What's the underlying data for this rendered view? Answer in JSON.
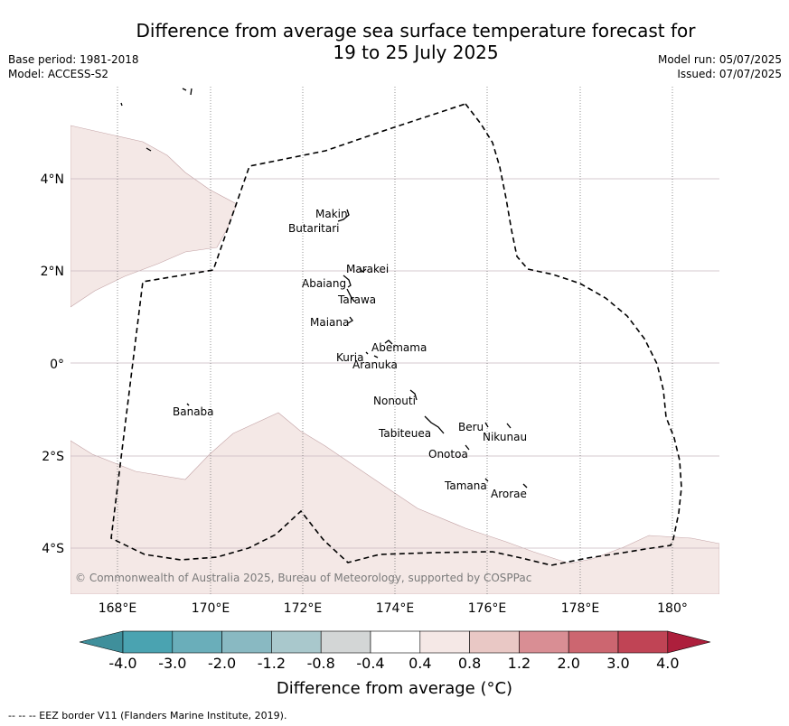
{
  "title": {
    "line1": "Difference from average sea surface temperature forecast for",
    "line2": "19 to 25 July 2025"
  },
  "meta_left": [
    "Base period: 1981-2018",
    "Model: ACCESS-S2"
  ],
  "meta_right": [
    "Model run: 05/07/2025",
    "Issued: 07/07/2025"
  ],
  "map": {
    "lat_labels": [
      "4°N",
      "2°N",
      "0°",
      "2°S",
      "4°S"
    ],
    "lon_labels": [
      "168°E",
      "170°E",
      "172°E",
      "174°E",
      "176°E",
      "178°E",
      "180°"
    ],
    "places": [
      "Makin",
      "Butaritari",
      "Marakei",
      "Abaiang",
      "Tarawa",
      "Maiana",
      "Abemama",
      "Kuria",
      "Aranuka",
      "Nonouti",
      "Banaba",
      "Beru",
      "Nikunau",
      "Tabiteuea",
      "Onotoa",
      "Tamana",
      "Arorae"
    ],
    "copyright": "© Commonwealth of Australia 2025, Bureau of Meteorology, supported by COSPPac"
  },
  "colorbar": {
    "ticks": [
      "-4.0",
      "-3.0",
      "-2.0",
      "-1.2",
      "-0.8",
      "-0.4",
      "0.4",
      "0.8",
      "1.2",
      "2.0",
      "3.0",
      "4.0"
    ],
    "colors": [
      "#3f8f9b",
      "#4aa3b1",
      "#6aaeba",
      "#89b9c2",
      "#a9c8cc",
      "#d3d6d6",
      "#ffffff",
      "#f5e8e6",
      "#e9c8c5",
      "#d98e94",
      "#cc6670",
      "#c04455",
      "#ad1f3c"
    ],
    "label": "Difference from average (°C)"
  },
  "footnote": "--  --  -- EEZ border V11 (Flanders Marine Institute, 2019).",
  "colors": {
    "warm_fill": "#f4e8e6",
    "grid": "#c9b9bf"
  }
}
